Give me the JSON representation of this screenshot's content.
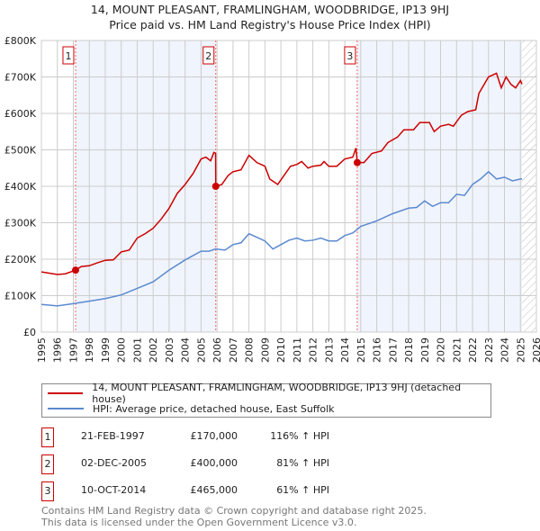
{
  "chart_data": {
    "type": "line",
    "title": "14, MOUNT PLEASANT, FRAMLINGHAM, WOODBRIDGE, IP13 9HJ",
    "subtitle": "Price paid vs. HM Land Registry's House Price Index (HPI)",
    "xlim": [
      1995,
      2026
    ],
    "ylim": [
      0,
      800000
    ],
    "x_ticks": [
      "1995",
      "1996",
      "1997",
      "1998",
      "1999",
      "2000",
      "2001",
      "2002",
      "2003",
      "2004",
      "2005",
      "2006",
      "2007",
      "2008",
      "2009",
      "2010",
      "2011",
      "2012",
      "2013",
      "2014",
      "2015",
      "2016",
      "2017",
      "2018",
      "2019",
      "2020",
      "2021",
      "2022",
      "2023",
      "2024",
      "2025",
      "2026"
    ],
    "y_ticks": [
      {
        "v": 0,
        "label": "£0"
      },
      {
        "v": 100000,
        "label": "£100K"
      },
      {
        "v": 200000,
        "label": "£200K"
      },
      {
        "v": 300000,
        "label": "£300K"
      },
      {
        "v": 400000,
        "label": "£400K"
      },
      {
        "v": 500000,
        "label": "£500K"
      },
      {
        "v": 600000,
        "label": "£600K"
      },
      {
        "v": 700000,
        "label": "£700K"
      },
      {
        "v": 800000,
        "label": "£800K"
      }
    ],
    "grid": true,
    "shaded_ranges": [
      [
        1997.14,
        2005.92
      ],
      [
        2014.78,
        2025.1
      ]
    ],
    "hatched_from": 2025.1,
    "series": [
      {
        "name": "14, MOUNT PLEASANT, FRAMLINGHAM, WOODBRIDGE, IP13 9HJ (detached house)",
        "color": "#cc0000",
        "x": [
          1995,
          1996,
          1996.5,
          1997.14,
          1997.5,
          1998,
          1998.5,
          1999,
          1999.5,
          2000,
          2000.5,
          2001,
          2001.5,
          2002,
          2002.5,
          2003,
          2003.5,
          2004,
          2004.5,
          2005,
          2005.3,
          2005.6,
          2005.8,
          2005.91,
          2005.92,
          2006.3,
          2006.7,
          2007,
          2007.5,
          2008,
          2008.5,
          2009,
          2009.3,
          2009.8,
          2010.2,
          2010.6,
          2011,
          2011.3,
          2011.7,
          2012,
          2012.5,
          2012.7,
          2013,
          2013.5,
          2014,
          2014.5,
          2014.7,
          2014.78,
          2015.2,
          2015.7,
          2016.3,
          2016.7,
          2017.3,
          2017.7,
          2018.3,
          2018.7,
          2019.3,
          2019.6,
          2020,
          2020.5,
          2020.8,
          2021.3,
          2021.7,
          2022.2,
          2022.4,
          2023,
          2023.5,
          2023.8,
          2024.1,
          2024.4,
          2024.7,
          2025,
          2025.1
        ],
        "y": [
          165000,
          158000,
          160000,
          170000,
          180000,
          182000,
          190000,
          197000,
          198000,
          220000,
          225000,
          258000,
          270000,
          285000,
          310000,
          340000,
          380000,
          405000,
          435000,
          475000,
          480000,
          470000,
          493000,
          490000,
          400000,
          405000,
          430000,
          440000,
          445000,
          485000,
          465000,
          455000,
          420000,
          405000,
          430000,
          455000,
          460000,
          468000,
          450000,
          455000,
          458000,
          468000,
          455000,
          455000,
          475000,
          480000,
          505000,
          465000,
          465000,
          490000,
          497000,
          520000,
          535000,
          555000,
          555000,
          575000,
          575000,
          550000,
          565000,
          570000,
          565000,
          595000,
          605000,
          610000,
          655000,
          700000,
          710000,
          670000,
          700000,
          680000,
          670000,
          690000,
          680000
        ]
      },
      {
        "name": "HPI: Average price, detached house, East Suffolk",
        "color": "#5b8ad0",
        "x": [
          1995,
          1996,
          1997,
          1998,
          1999,
          2000,
          2001,
          2002,
          2003,
          2004,
          2005,
          2005.5,
          2005.9,
          2006.5,
          2007,
          2007.5,
          2008,
          2008.5,
          2009,
          2009.5,
          2010,
          2010.5,
          2011,
          2011.5,
          2012,
          2012.5,
          2013,
          2013.5,
          2014,
          2014.5,
          2015,
          2016,
          2017,
          2018,
          2018.5,
          2019,
          2019.5,
          2020,
          2020.5,
          2021,
          2021.5,
          2022,
          2022.5,
          2023,
          2023.5,
          2024,
          2024.5,
          2025,
          2025.1
        ],
        "y": [
          76000,
          72000,
          78000,
          85000,
          92000,
          102000,
          120000,
          138000,
          170000,
          198000,
          222000,
          222000,
          228000,
          225000,
          240000,
          245000,
          270000,
          260000,
          250000,
          228000,
          240000,
          252000,
          258000,
          250000,
          252000,
          258000,
          250000,
          250000,
          265000,
          272000,
          290000,
          305000,
          325000,
          340000,
          342000,
          360000,
          345000,
          355000,
          355000,
          378000,
          375000,
          405000,
          420000,
          440000,
          420000,
          425000,
          415000,
          420000,
          420000
        ]
      }
    ],
    "sales": [
      {
        "id": "1",
        "x": 1997.14,
        "price": 170000,
        "date": "21-FEB-1997",
        "price_label": "£170,000",
        "hpi": "116% ↑ HPI"
      },
      {
        "id": "2",
        "x": 2005.92,
        "price": 400000,
        "date": "02-DEC-2005",
        "price_label": "£400,000",
        "hpi": "81% ↑ HPI"
      },
      {
        "id": "3",
        "x": 2014.78,
        "price": 465000,
        "date": "10-OCT-2014",
        "price_label": "£465,000",
        "hpi": "61% ↑ HPI"
      }
    ],
    "legend_position": "below"
  },
  "footer": {
    "line1": "Contains HM Land Registry data © Crown copyright and database right 2025.",
    "line2": "This data is licensed under the Open Government Licence v3.0."
  }
}
